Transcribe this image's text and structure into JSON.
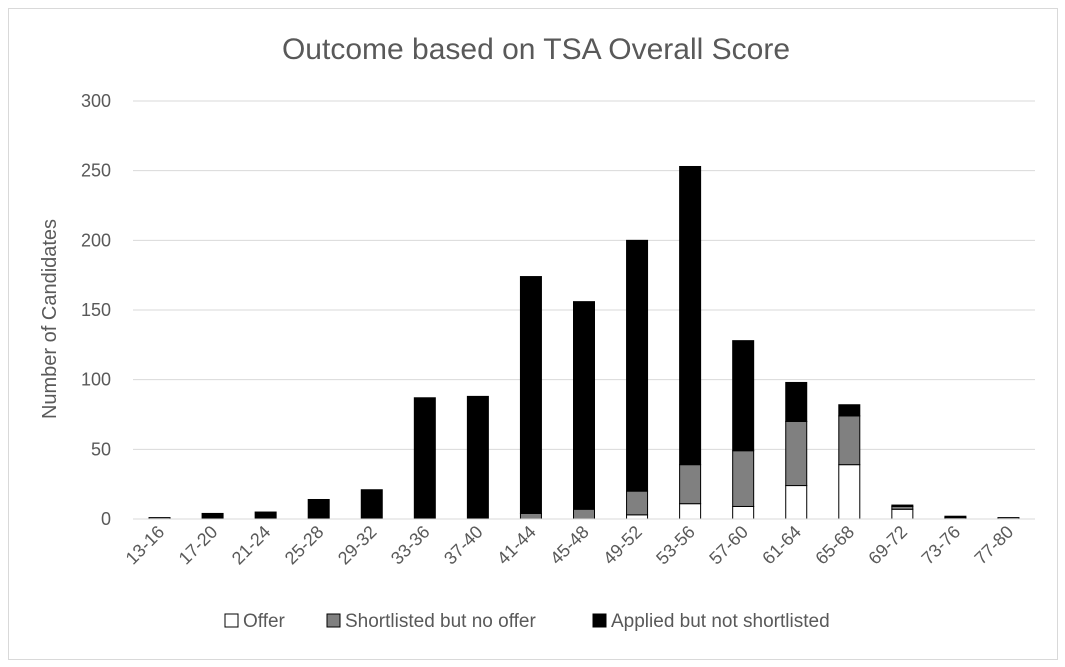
{
  "chart_data": {
    "type": "bar",
    "stacked": true,
    "title": "Outcome based on TSA Overall Score",
    "xlabel": "",
    "ylabel": "Number of Candidates",
    "ylim": [
      0,
      300
    ],
    "yticks": [
      0,
      50,
      100,
      150,
      200,
      250,
      300
    ],
    "grid": true,
    "legend_position": "bottom",
    "categories": [
      "13-16",
      "17-20",
      "21-24",
      "25-28",
      "29-32",
      "33-36",
      "37-40",
      "41-44",
      "45-48",
      "49-52",
      "53-56",
      "57-60",
      "61-64",
      "65-68",
      "69-72",
      "73-76",
      "77-80"
    ],
    "series": [
      {
        "name": "Offer",
        "color": "#ffffff",
        "values": [
          0,
          0,
          0,
          0,
          0,
          0,
          0,
          0,
          0,
          3,
          11,
          9,
          24,
          39,
          7,
          0,
          0
        ]
      },
      {
        "name": "Shortlisted but no offer",
        "color": "#808080",
        "values": [
          1,
          0,
          0,
          0,
          0,
          0,
          0,
          4,
          7,
          17,
          28,
          40,
          46,
          35,
          2,
          1,
          1
        ]
      },
      {
        "name": "Applied but not shortlisted",
        "color": "#000000",
        "values": [
          0,
          4,
          5,
          14,
          21,
          87,
          88,
          170,
          149,
          180,
          214,
          79,
          28,
          8,
          1,
          1,
          0
        ]
      }
    ]
  }
}
